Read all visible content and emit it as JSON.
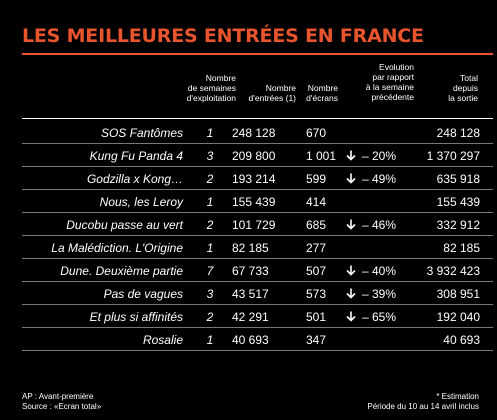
{
  "title": "LES MEILLEURES ENTRÉES EN FRANCE",
  "colors": {
    "accent": "#e8552d",
    "background": "#000000",
    "text": "#ffffff"
  },
  "headers": {
    "semaines": "Nombre\nde semaines\nd'exploitation",
    "entrees": "Nombre\nd'entrées (1)",
    "ecrans": "Nombre\nd'écrans",
    "evolution": "Evolution\npar rapport\nà la semaine\nprécédente",
    "total": "Total\ndepuis\nla sortie"
  },
  "rows": [
    {
      "title": "SOS Fantômes",
      "semaines": "1",
      "entrees": "248 128",
      "ecrans": "670",
      "arrow": "",
      "evolution": "",
      "total": "248 128"
    },
    {
      "title": "Kung Fu Panda 4",
      "semaines": "3",
      "entrees": "209 800",
      "ecrans": "1 001",
      "arrow": "down-arrow-icon",
      "evolution": "– 20%",
      "total": "1 370 297"
    },
    {
      "title": "Godzilla x Kong…",
      "semaines": "2",
      "entrees": "193 214",
      "ecrans": "599",
      "arrow": "down-arrow-icon",
      "evolution": "– 49%",
      "total": "635 918"
    },
    {
      "title": "Nous, les Leroy",
      "semaines": "1",
      "entrees": "155 439",
      "ecrans": "414",
      "arrow": "",
      "evolution": "",
      "total": "155 439"
    },
    {
      "title": "Ducobu passe au vert",
      "semaines": "2",
      "entrees": "101 729",
      "ecrans": "685",
      "arrow": "down-arrow-icon",
      "evolution": "– 46%",
      "total": "332 912"
    },
    {
      "title": "La Malédiction. L'Origine",
      "semaines": "1",
      "entrees": "82 185",
      "ecrans": "277",
      "arrow": "",
      "evolution": "",
      "total": "82 185"
    },
    {
      "title": "Dune. Deuxième partie",
      "semaines": "7",
      "entrees": "67 733",
      "ecrans": "507",
      "arrow": "down-arrow-icon",
      "evolution": "– 40%",
      "total": "3 932 423"
    },
    {
      "title": "Pas de vagues",
      "semaines": "3",
      "entrees": "43 517",
      "ecrans": "573",
      "arrow": "down-arrow-icon",
      "evolution": "– 39%",
      "total": "308 951"
    },
    {
      "title": "Et plus si affinités",
      "semaines": "2",
      "entrees": "42 291",
      "ecrans": "501",
      "arrow": "down-arrow-icon",
      "evolution": "– 65%",
      "total": "192 040"
    },
    {
      "title": "Rosalie",
      "semaines": "1",
      "entrees": "40 693",
      "ecrans": "347",
      "arrow": "",
      "evolution": "",
      "total": "40 693"
    }
  ],
  "footer": {
    "left_line1": "AP : Avant-première",
    "left_line2": "Source : «Ecran total»",
    "right_line1": "* Estimation",
    "right_line2": "Période du 10 au 14 avril inclus"
  }
}
